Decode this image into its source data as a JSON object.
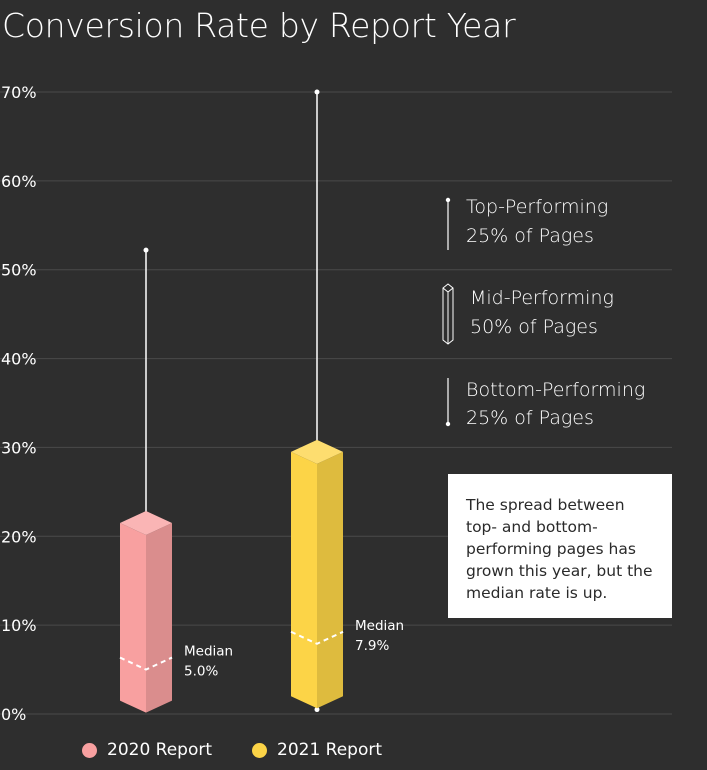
{
  "chart_data": {
    "type": "boxplot",
    "title": "Conversion Rate by Report Year",
    "ylim": [
      0,
      70
    ],
    "yticks": [
      0,
      10,
      20,
      30,
      40,
      50,
      60,
      70
    ],
    "ytick_labels": [
      "0%",
      "10%",
      "20%",
      "30%",
      "40%",
      "50%",
      "60%",
      "70%"
    ],
    "grid": true,
    "series": [
      {
        "name": "2020 Report",
        "color": "#f8a0a0",
        "min": 0.5,
        "q1": 1.5,
        "median": 5.0,
        "q3": 21.5,
        "max": 52.2,
        "median_label": "Median",
        "median_value": "5.0%"
      },
      {
        "name": "2021 Report",
        "color": "#fcd447",
        "min": 0.5,
        "q1": 2.0,
        "median": 7.9,
        "q3": 29.5,
        "max": 70.0,
        "median_label": "Median",
        "median_value": "7.9%"
      }
    ],
    "key": [
      {
        "line1": "Top-Performing",
        "line2": "25% of Pages"
      },
      {
        "line1": "Mid-Performing",
        "line2": "50% of Pages"
      },
      {
        "line1": "Bottom-Performing",
        "line2": "25% of Pages"
      }
    ],
    "annotation": "The spread between top- and bottom-performing pages has grown this year, but the median rate is up.",
    "legend": [
      "2020 Report",
      "2021 Report"
    ]
  }
}
